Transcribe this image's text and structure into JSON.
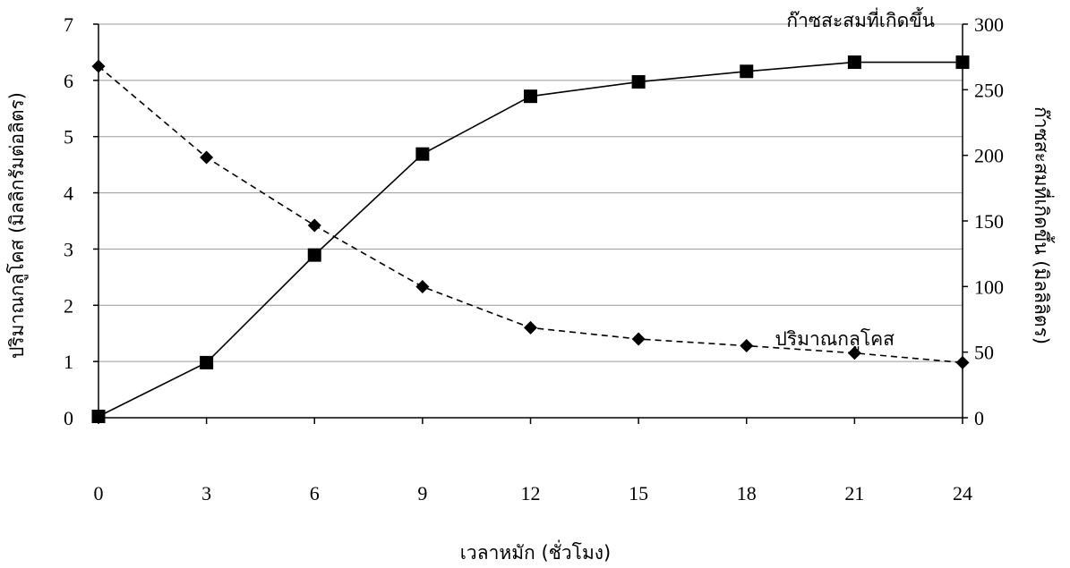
{
  "chart_data": {
    "type": "line",
    "xlabel": "เวลาหมัก (ชั่วโมง)",
    "ylabel_left": "ปริมาณกลูโคส (มิลลิกรัมต่อลิตร)",
    "ylabel_right": "ก๊าซสะสมที่เกิดขึ้น (มิลลิลิตร)",
    "x": [
      0,
      3,
      6,
      9,
      12,
      15,
      18,
      21,
      24
    ],
    "x_ticks": [
      "0",
      "3",
      "6",
      "9",
      "12",
      "15",
      "18",
      "21",
      "24"
    ],
    "ylim_left": [
      0,
      7
    ],
    "y_ticks_left": [
      "0",
      "1",
      "2",
      "3",
      "4",
      "5",
      "6",
      "7"
    ],
    "ylim_right": [
      0,
      300
    ],
    "y_ticks_right": [
      "0",
      "50",
      "100",
      "150",
      "200",
      "250",
      "300"
    ],
    "grid": true,
    "series": [
      {
        "name": "ก๊าซสะสมที่เกิดขึ้น",
        "axis": "right",
        "marker": "square",
        "line_style": "solid",
        "values": [
          1,
          42,
          124,
          201,
          245,
          256,
          264,
          271,
          271
        ]
      },
      {
        "name": "ปริมาณกลูโคส",
        "axis": "left",
        "marker": "diamond",
        "line_style": "dashed",
        "values": [
          6.25,
          4.63,
          3.42,
          2.33,
          1.6,
          1.4,
          1.28,
          1.15,
          0.98
        ]
      }
    ]
  }
}
